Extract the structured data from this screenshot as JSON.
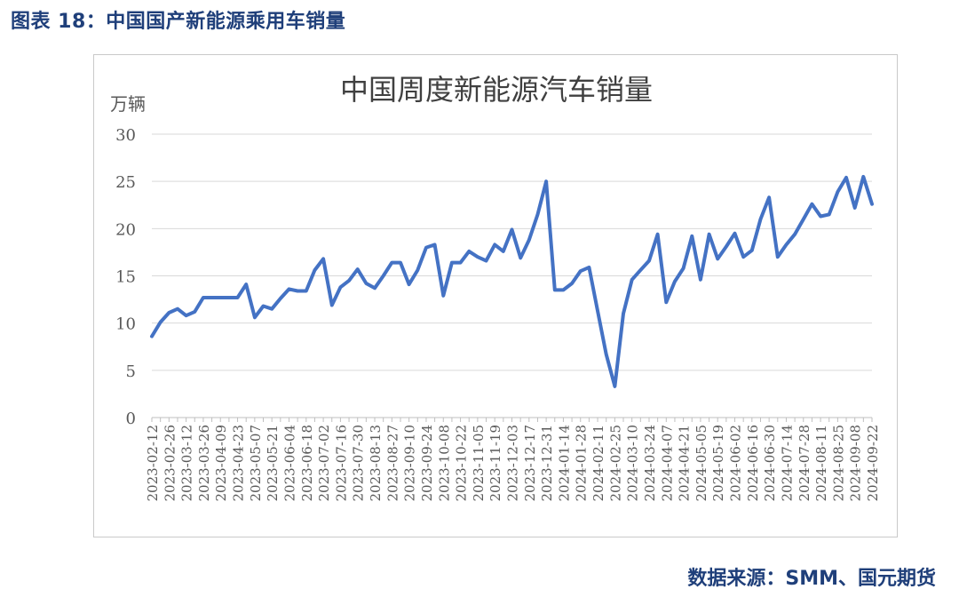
{
  "figure_caption": "图表 18：中国国产新能源乘用车销量",
  "source_note": "数据来源：SMM、国元期货",
  "colors": {
    "series": "#4472c4",
    "grid": "#d9d9d9",
    "caption": "#1f3f7a",
    "text": "#595959"
  },
  "chart_data": {
    "type": "line",
    "title": "中国周度新能源汽车销量",
    "ylabel": "万辆",
    "xlabel": "",
    "ylim": [
      0,
      30
    ],
    "yticks": [
      0,
      5,
      10,
      15,
      20,
      25,
      30
    ],
    "grid": "horizontal",
    "legend": "none",
    "tick_labels": [
      "2023-02-12",
      "2023-02-26",
      "2023-03-12",
      "2023-03-26",
      "2023-04-09",
      "2023-04-23",
      "2023-05-07",
      "2023-05-21",
      "2023-06-04",
      "2023-06-18",
      "2023-07-02",
      "2023-07-16",
      "2023-07-30",
      "2023-08-13",
      "2023-08-27",
      "2023-09-10",
      "2023-09-24",
      "2023-10-08",
      "2023-10-22",
      "2023-11-05",
      "2023-11-19",
      "2023-12-03",
      "2023-12-17",
      "2023-12-31",
      "2024-01-14",
      "2024-01-28",
      "2024-02-11",
      "2024-02-25",
      "2024-03-10",
      "2024-03-24",
      "2024-04-07",
      "2024-04-21",
      "2024-05-05",
      "2024-05-19",
      "2024-06-02",
      "2024-06-16",
      "2024-06-30",
      "2024-07-14",
      "2024-07-28",
      "2024-08-11",
      "2024-08-25",
      "2024-09-08",
      "2024-09-22"
    ],
    "x": [
      "2023-02-12",
      "2023-02-19",
      "2023-02-26",
      "2023-03-05",
      "2023-03-12",
      "2023-03-19",
      "2023-03-26",
      "2023-04-02",
      "2023-04-09",
      "2023-04-16",
      "2023-04-23",
      "2023-04-30",
      "2023-05-07",
      "2023-05-14",
      "2023-05-21",
      "2023-05-28",
      "2023-06-04",
      "2023-06-11",
      "2023-06-18",
      "2023-06-25",
      "2023-07-02",
      "2023-07-09",
      "2023-07-16",
      "2023-07-23",
      "2023-07-30",
      "2023-08-06",
      "2023-08-13",
      "2023-08-20",
      "2023-08-27",
      "2023-09-03",
      "2023-09-10",
      "2023-09-17",
      "2023-09-24",
      "2023-10-01",
      "2023-10-08",
      "2023-10-15",
      "2023-10-22",
      "2023-10-29",
      "2023-11-05",
      "2023-11-12",
      "2023-11-19",
      "2023-11-26",
      "2023-12-03",
      "2023-12-10",
      "2023-12-17",
      "2023-12-24",
      "2023-12-31",
      "2024-01-07",
      "2024-01-14",
      "2024-01-21",
      "2024-01-28",
      "2024-02-04",
      "2024-02-11",
      "2024-02-18",
      "2024-02-25",
      "2024-03-03",
      "2024-03-10",
      "2024-03-17",
      "2024-03-24",
      "2024-03-31",
      "2024-04-07",
      "2024-04-14",
      "2024-04-21",
      "2024-04-28",
      "2024-05-05",
      "2024-05-12",
      "2024-05-19",
      "2024-05-26",
      "2024-06-02",
      "2024-06-09",
      "2024-06-16",
      "2024-06-23",
      "2024-06-30",
      "2024-07-07",
      "2024-07-14",
      "2024-07-21",
      "2024-07-28",
      "2024-08-04",
      "2024-08-11",
      "2024-08-18",
      "2024-08-25",
      "2024-09-01",
      "2024-09-08",
      "2024-09-15",
      "2024-09-22"
    ],
    "series": [
      {
        "values": [
          8.6,
          10.1,
          11.1,
          11.5,
          10.8,
          11.2,
          12.7,
          12.7,
          12.7,
          12.7,
          12.7,
          14.1,
          10.6,
          11.8,
          11.5,
          12.6,
          13.6,
          13.4,
          13.4,
          15.6,
          16.8,
          11.9,
          13.8,
          14.5,
          15.7,
          14.2,
          13.7,
          15.0,
          16.4,
          16.4,
          14.1,
          15.6,
          18.0,
          18.3,
          12.9,
          16.4,
          16.4,
          17.6,
          17.0,
          16.6,
          18.3,
          17.6,
          19.9,
          16.9,
          18.8,
          21.5,
          25.0,
          13.5,
          13.5,
          14.2,
          15.5,
          15.9,
          11.3,
          6.7,
          3.3,
          11.0,
          14.6,
          15.6,
          16.6,
          19.4,
          12.2,
          14.4,
          15.8,
          19.2,
          14.6,
          19.4,
          16.8,
          18.1,
          19.5,
          17.0,
          17.7,
          21.0,
          23.3,
          17.0,
          18.3,
          19.4,
          21.0,
          22.6,
          21.3,
          21.5,
          23.9,
          25.4,
          22.2,
          25.5,
          22.6
        ]
      }
    ]
  }
}
